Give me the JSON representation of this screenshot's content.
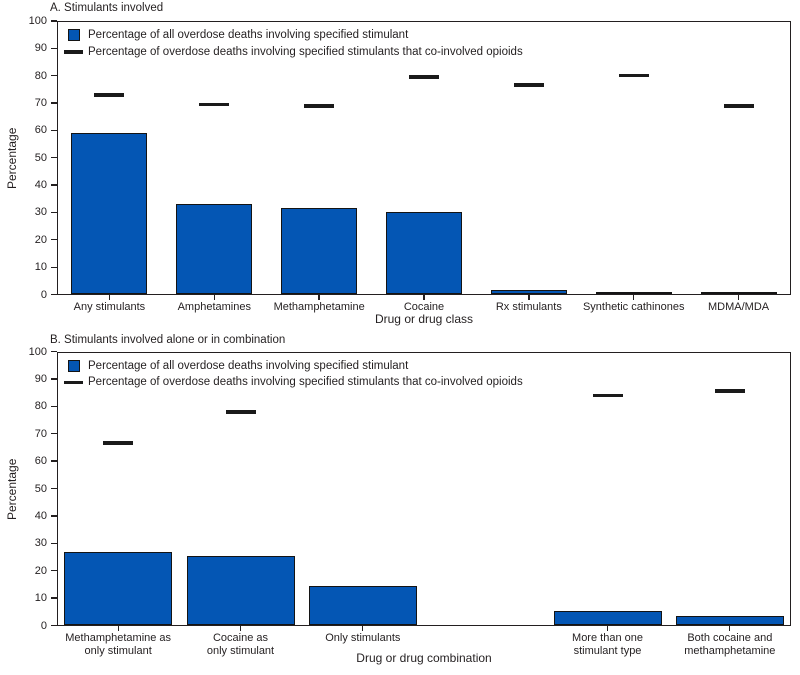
{
  "colors": {
    "bar_fill": "#0456b4",
    "bar_border": "#141414",
    "axis": "#231f20",
    "background": "#ffffff"
  },
  "chart_data": [
    {
      "type": "bar",
      "panel": "A",
      "title": "A. Stimulants involved",
      "xlabel": "Drug or drug class",
      "ylabel": "Percentage",
      "ylim": [
        0,
        100
      ],
      "ytick_step": 10,
      "grid": false,
      "legend_position": "top-left-inside",
      "slots": 7,
      "slot_index": [
        0,
        1,
        2,
        3,
        4,
        5,
        6
      ],
      "categories": [
        "Any stimulants",
        "Amphetamines",
        "Methamphetamine",
        "Cocaine",
        "Rx stimulants",
        "Synthetic cathinones",
        "MDMA/MDA"
      ],
      "series": [
        {
          "name": "Percentage of all overdose deaths involving specified stimulant",
          "style": "bar",
          "values": [
            59,
            33,
            31.5,
            30,
            1.7,
            0.8,
            0.5
          ]
        },
        {
          "name": "Percentage of overdose deaths involving specified stimulants that co-involved opioids",
          "style": "dash",
          "values": [
            73,
            69.5,
            69,
            79.5,
            76.5,
            80,
            69
          ]
        }
      ]
    },
    {
      "type": "bar",
      "panel": "B",
      "title": "B. Stimulants involved alone or in combination",
      "xlabel": "Drug or drug combination",
      "ylabel": "Percentage",
      "ylim": [
        0,
        100
      ],
      "ytick_step": 10,
      "grid": false,
      "legend_position": "top-left-inside",
      "slots": 6,
      "slot_index": [
        0,
        1,
        2,
        4,
        5
      ],
      "categories": [
        [
          "Methamphetamine as",
          "only stimulant"
        ],
        [
          "Cocaine as",
          "only stimulant"
        ],
        [
          "Only stimulants"
        ],
        [
          "More than one",
          "stimulant type"
        ],
        [
          "Both cocaine and",
          "methamphetamine"
        ]
      ],
      "series": [
        {
          "name": "Percentage of all overdose deaths involving specified stimulant",
          "style": "bar",
          "values": [
            27,
            25.3,
            14.3,
            5.4,
            3.6
          ]
        },
        {
          "name": "Percentage of overdose deaths involving specified stimulants that co-involved opioids",
          "style": "dash",
          "values": [
            66.5,
            78,
            null,
            84,
            85.5
          ]
        }
      ]
    }
  ]
}
